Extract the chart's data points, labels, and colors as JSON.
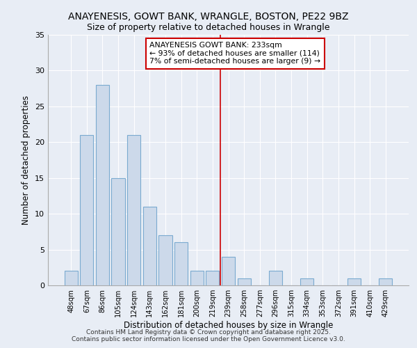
{
  "title": "ANAYENESIS, GOWT BANK, WRANGLE, BOSTON, PE22 9BZ",
  "subtitle": "Size of property relative to detached houses in Wrangle",
  "xlabel": "Distribution of detached houses by size in Wrangle",
  "ylabel": "Number of detached properties",
  "bar_labels": [
    "48sqm",
    "67sqm",
    "86sqm",
    "105sqm",
    "124sqm",
    "143sqm",
    "162sqm",
    "181sqm",
    "200sqm",
    "219sqm",
    "239sqm",
    "258sqm",
    "277sqm",
    "296sqm",
    "315sqm",
    "334sqm",
    "353sqm",
    "372sqm",
    "391sqm",
    "410sqm",
    "429sqm"
  ],
  "bar_values": [
    2,
    21,
    28,
    15,
    21,
    11,
    7,
    6,
    2,
    2,
    4,
    1,
    0,
    2,
    0,
    1,
    0,
    0,
    1,
    0,
    1
  ],
  "bar_color": "#ccd9ea",
  "bar_edge_color": "#7aaad0",
  "background_color": "#e8edf5",
  "grid_color": "#ffffff",
  "vline_color": "#cc0000",
  "annotation_title": "ANAYENESIS GOWT BANK: 233sqm",
  "annotation_line1": "← 93% of detached houses are smaller (114)",
  "annotation_line2": "7% of semi-detached houses are larger (9) →",
  "footer": "Contains HM Land Registry data © Crown copyright and database right 2025.\nContains public sector information licensed under the Open Government Licence v3.0.",
  "ylim": [
    0,
    35
  ],
  "yticks": [
    0,
    5,
    10,
    15,
    20,
    25,
    30,
    35
  ],
  "vline_x_index": 10
}
